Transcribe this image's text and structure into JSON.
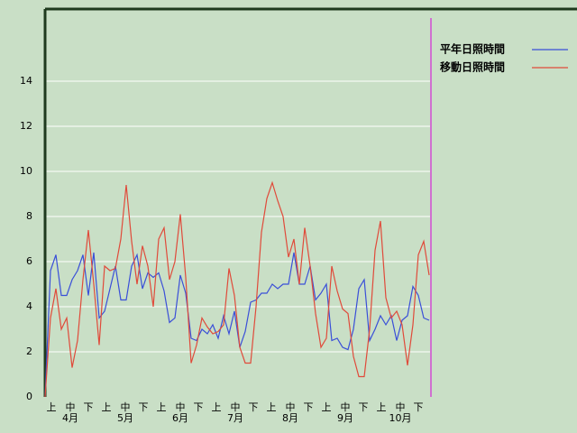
{
  "chart_data": {
    "type": "line",
    "ylim": [
      0,
      17.2
    ],
    "yticks": [
      0,
      2,
      4,
      6,
      8,
      10,
      12,
      14
    ],
    "grid": true,
    "xlabels": [
      "上",
      "中",
      "下",
      "上",
      "中",
      "下",
      "上",
      "中",
      "下",
      "上",
      "中",
      "下",
      "上",
      "中",
      "下",
      "上",
      "中",
      "下",
      "上",
      "中",
      "下"
    ],
    "months": [
      "4月",
      "5月",
      "6月",
      "7月",
      "8月",
      "9月",
      "10月"
    ],
    "series": [
      {
        "name": "平年日照時間",
        "color": "#3a4fd8",
        "values": [
          0,
          5.6,
          6.3,
          4.5,
          4.5,
          5.2,
          5.6,
          6.3,
          4.5,
          6.4,
          3.5,
          3.8,
          4.8,
          5.8,
          4.3,
          4.3,
          5.8,
          6.3,
          4.8,
          5.5,
          5.3,
          5.5,
          4.7,
          3.3,
          3.5,
          5.4,
          4.6,
          2.6,
          2.5,
          3.0,
          2.8,
          3.2,
          2.6,
          3.6,
          2.8,
          3.8,
          2.2,
          2.9,
          4.2,
          4.3,
          4.6,
          4.6,
          5.0,
          4.8,
          5.0,
          5.0,
          6.4,
          5.0,
          5.0,
          5.8,
          4.3,
          4.6,
          5.0,
          2.5,
          2.6,
          2.2,
          2.1,
          3.0,
          4.8,
          5.2,
          2.5,
          3.0,
          3.6,
          3.2,
          3.6,
          2.5,
          3.4,
          3.6,
          4.9,
          4.5,
          3.5,
          3.4
        ]
      },
      {
        "name": "移動日照時間",
        "color": "#e04a3a",
        "values": [
          0,
          3.5,
          4.8,
          3.0,
          3.5,
          1.3,
          2.5,
          5.2,
          7.4,
          5.0,
          2.3,
          5.8,
          5.6,
          5.7,
          7.0,
          9.4,
          6.9,
          5.0,
          6.7,
          5.8,
          4.0,
          7.0,
          7.5,
          5.2,
          6.0,
          8.1,
          5.3,
          1.5,
          2.3,
          3.5,
          3.1,
          2.8,
          2.9,
          3.2,
          5.7,
          4.5,
          2.2,
          1.5,
          1.5,
          4.0,
          7.3,
          8.8,
          9.5,
          8.7,
          8.0,
          6.2,
          7.0,
          5.0,
          7.5,
          5.8,
          3.7,
          2.2,
          2.6,
          5.8,
          4.7,
          3.9,
          3.7,
          1.8,
          0.9,
          0.9,
          3.0,
          6.5,
          7.8,
          4.4,
          3.5,
          3.8,
          3.2,
          1.4,
          3.2,
          6.3,
          6.9,
          5.4
        ]
      }
    ]
  }
}
